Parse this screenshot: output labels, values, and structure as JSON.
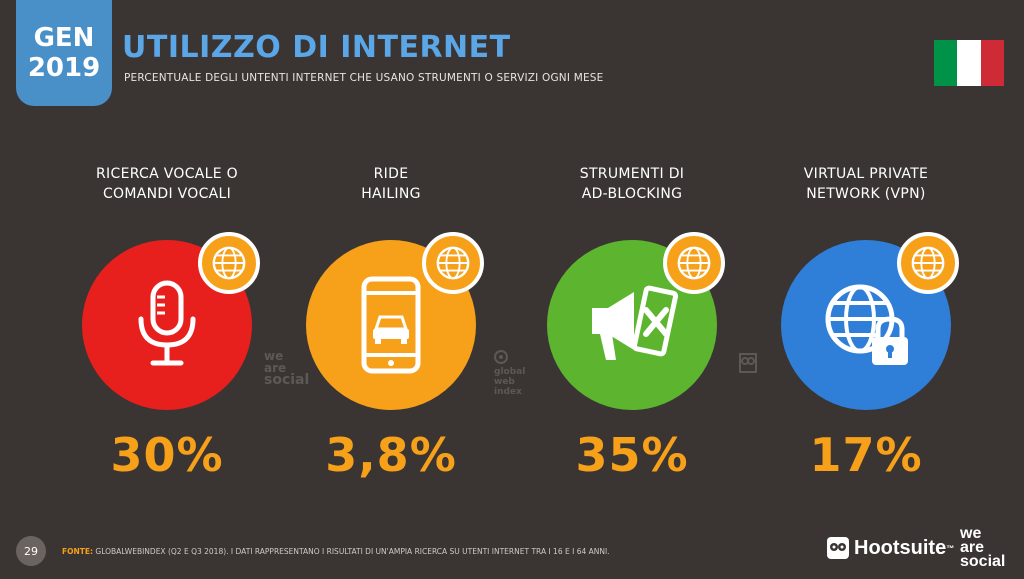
{
  "badge": {
    "line1": "GEN",
    "line2": "2019"
  },
  "header": {
    "title": "UTILIZZO DI INTERNET",
    "subtitle": "PERCENTUALE DEGLI UNTENTI INTERNET CHE USANO STRUMENTI O SERVIZI OGNI MESE"
  },
  "flag_colors": [
    "#009246",
    "#ffffff",
    "#ce2b37"
  ],
  "cards": [
    {
      "label_line1": "RICERCA VOCALE O",
      "label_line2": "COMANDI VOCALI",
      "value": "30%",
      "color": "#e8201d",
      "icon": "microphone-icon"
    },
    {
      "label_line1": "RIDE",
      "label_line2": "HAILING",
      "value": "3,8%",
      "color": "#f7a11a",
      "icon": "smartphone-car-icon"
    },
    {
      "label_line1": "STRUMENTI DI",
      "label_line2": "AD-BLOCKING",
      "value": "35%",
      "color": "#5db52f",
      "icon": "ad-block-megaphone-icon"
    },
    {
      "label_line1": "VIRTUAL PRIVATE",
      "label_line2": "NETWORK (VPN)",
      "value": "17%",
      "color": "#2f7fd8",
      "icon": "globe-lock-icon"
    }
  ],
  "watermarks": {
    "we_are_social": [
      "we",
      "are",
      "social"
    ],
    "gwi": [
      "global",
      "web",
      "index"
    ]
  },
  "footer": {
    "page_number": "29",
    "source_label": "FONTE:",
    "source_text": "GLOBALWEBINDEX (Q2 E Q3 2018). I DATI RAPPRESENTANO I RISULTATI DI UN'AMPIA RICERCA SU UTENTI INTERNET TRA I 16 E I 64 ANNI.",
    "hootsuite": "Hootsuite",
    "trademark": "™",
    "we_are_social": [
      "we",
      "are",
      "social"
    ]
  }
}
